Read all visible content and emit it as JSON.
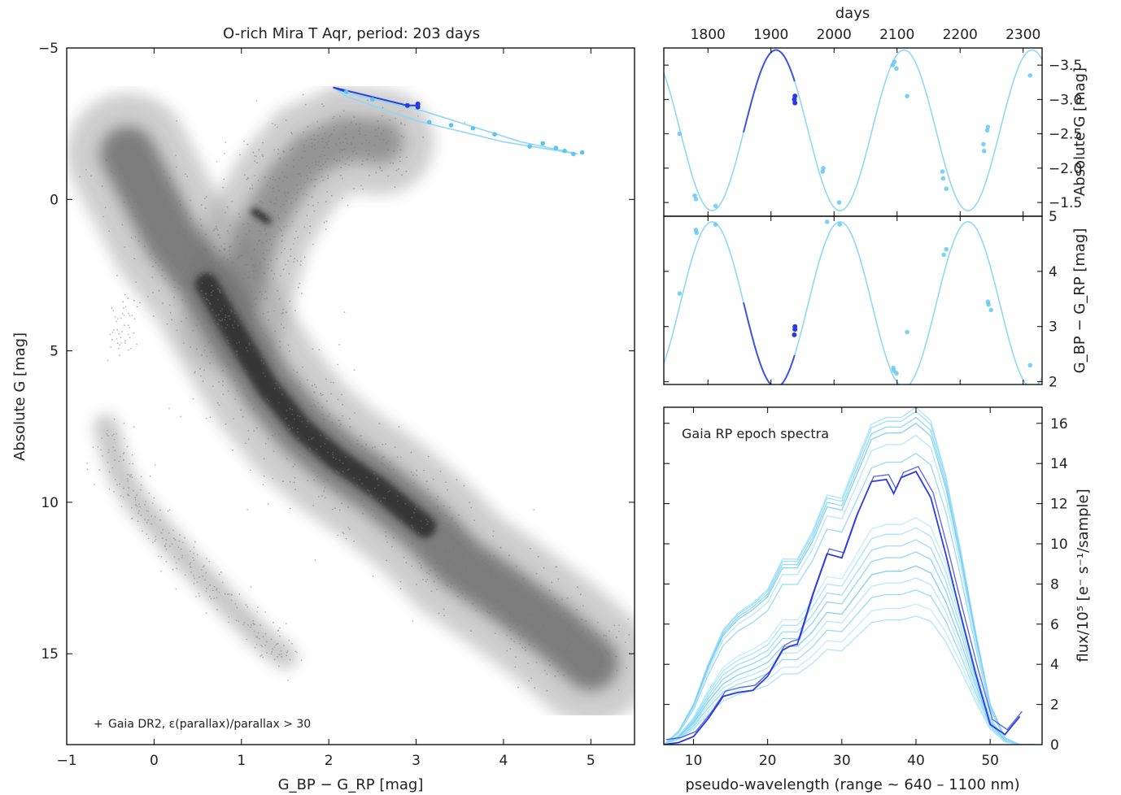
{
  "colors": {
    "cloud": "#2b2b2b",
    "light_blue": "#8fd8f6",
    "light_blue_point": "#5ec4ef",
    "dark_blue": "#2a3be0"
  },
  "chart_data": [
    {
      "id": "cmd",
      "type": "scatter",
      "title": "O-rich Mira T Aqr, period: 203 days",
      "xlabel": "G_BP − G_RP [mag]",
      "ylabel": "Absolute  G [mag]",
      "xlim": [
        -1,
        5.5
      ],
      "ylim": [
        18,
        -5
      ],
      "y_inverted": true,
      "xticks": [
        -1,
        0,
        1,
        2,
        3,
        4,
        5
      ],
      "yticks": [
        -5,
        0,
        5,
        10,
        15
      ],
      "legend": {
        "label": "Gaia DR2, ε(parallax)/parallax > 30",
        "position": "lower-left"
      },
      "population": {
        "name": "Gaia DR2",
        "main_sequence": [
          [
            -0.3,
            -1.5
          ],
          [
            0.2,
            1.3
          ],
          [
            0.6,
            2.8
          ],
          [
            0.9,
            4.3
          ],
          [
            1.3,
            6.2
          ],
          [
            1.7,
            7.6
          ],
          [
            2.1,
            8.6
          ],
          [
            2.6,
            9.6
          ],
          [
            3.1,
            10.8
          ],
          [
            3.5,
            12.0
          ],
          [
            4.0,
            13.0
          ],
          [
            4.6,
            14.3
          ],
          [
            5.0,
            15.3
          ]
        ],
        "red_giant_branch": [
          [
            0.9,
            4.0
          ],
          [
            1.05,
            2.5
          ],
          [
            1.2,
            1.0
          ],
          [
            1.5,
            -0.5
          ],
          [
            1.8,
            -1.5
          ],
          [
            2.2,
            -2.0
          ],
          [
            2.6,
            -1.9
          ]
        ],
        "red_clump": [
          [
            1.15,
            0.4
          ],
          [
            1.3,
            0.7
          ]
        ],
        "white_dwarfs": [
          [
            -0.55,
            7.5
          ],
          [
            -0.4,
            9.0
          ],
          [
            -0.2,
            10.0
          ],
          [
            0.1,
            11.0
          ],
          [
            0.4,
            12.0
          ],
          [
            0.8,
            13.2
          ],
          [
            1.2,
            14.4
          ],
          [
            1.5,
            15.1
          ]
        ],
        "hot_subdwarfs": [
          [
            -0.45,
            4.5
          ],
          [
            -0.3,
            4.2
          ]
        ]
      },
      "series": [
        {
          "name": "Gaia",
          "role": "epoch-loop",
          "loop": [
            [
              2.05,
              -3.7
            ],
            [
              2.2,
              -3.4
            ],
            [
              3.0,
              -2.6
            ],
            [
              4.0,
              -1.9
            ],
            [
              4.85,
              -1.5
            ],
            [
              4.2,
              -1.9
            ],
            [
              3.1,
              -2.9
            ],
            [
              2.15,
              -3.55
            ]
          ]
        },
        {
          "name": "Gaia",
          "role": "epoch-points",
          "points": [
            [
              2.2,
              -3.55
            ],
            [
              2.5,
              -3.3
            ],
            [
              3.15,
              -2.55
            ],
            [
              3.4,
              -2.45
            ],
            [
              3.65,
              -2.35
            ],
            [
              3.9,
              -2.15
            ],
            [
              4.3,
              -1.75
            ],
            [
              4.45,
              -1.85
            ],
            [
              4.6,
              -1.7
            ],
            [
              4.7,
              -1.6
            ],
            [
              4.8,
              -1.5
            ],
            [
              4.9,
              -1.55
            ]
          ]
        },
        {
          "name": "Gaia",
          "role": "current-points",
          "points": [
            [
              2.9,
              -3.1
            ],
            [
              3.02,
              -3.15
            ],
            [
              3.02,
              -3.05
            ]
          ]
        }
      ]
    },
    {
      "id": "light-curve",
      "type": "line",
      "xlabel_top": "days",
      "ylabel_right": "Absolute  G [mag]",
      "xlim": [
        1730,
        2330
      ],
      "ylim": [
        -1.3,
        -3.75
      ],
      "y_inverted": true,
      "xticks": [
        1800,
        1900,
        2000,
        2100,
        2200,
        2300
      ],
      "yticks": [
        -3.5,
        -3.0,
        -2.5,
        -2.0,
        -1.5
      ],
      "model": {
        "period": 203,
        "mean": -2.55,
        "amplitude": 1.17,
        "max_epoch": 1908
      },
      "current_epoch": 1938,
      "epoch_points": [
        [
          1755,
          -2.5
        ],
        [
          1779,
          -1.6
        ],
        [
          1781,
          -1.55
        ],
        [
          1812,
          -1.45
        ],
        [
          1982,
          -1.95
        ],
        [
          1983,
          -2.0
        ],
        [
          2008,
          -1.5
        ],
        [
          2093,
          -3.5
        ],
        [
          2096,
          -3.55
        ],
        [
          2099,
          -3.45
        ],
        [
          2116,
          -3.05
        ],
        [
          2172,
          -1.95
        ],
        [
          2173,
          -1.85
        ],
        [
          2178,
          -1.7
        ],
        [
          2237,
          -2.35
        ],
        [
          2238,
          -2.25
        ],
        [
          2243,
          -2.55
        ],
        [
          2244,
          -2.6
        ],
        [
          2311,
          -3.35
        ]
      ],
      "current_points": [
        [
          1937,
          -3.0
        ],
        [
          1938,
          -3.05
        ],
        [
          1938,
          -2.95
        ]
      ]
    },
    {
      "id": "color-curve",
      "type": "line",
      "ylabel_right": "G_BP − G_RP [mag]",
      "xlim": [
        1730,
        2330
      ],
      "ylim": [
        1.95,
        5.0
      ],
      "xticks": [
        1800,
        1900,
        2000,
        2100,
        2200,
        2300
      ],
      "yticks": [
        2,
        3,
        4,
        5
      ],
      "model": {
        "period": 203,
        "mean": 3.4,
        "amplitude": 1.5,
        "min_epoch": 1908
      },
      "current_epoch": 1938,
      "epoch_points": [
        [
          1755,
          3.6
        ],
        [
          1781,
          4.75
        ],
        [
          1782,
          4.7
        ],
        [
          1812,
          4.85
        ],
        [
          1989,
          4.9
        ],
        [
          2009,
          4.85
        ],
        [
          2094,
          2.25
        ],
        [
          2095,
          2.2
        ],
        [
          2099,
          2.15
        ],
        [
          2116,
          2.9
        ],
        [
          2174,
          4.3
        ],
        [
          2178,
          4.4
        ],
        [
          2244,
          3.45
        ],
        [
          2245,
          3.4
        ],
        [
          2249,
          3.3
        ],
        [
          2311,
          2.3
        ]
      ],
      "current_points": [
        [
          1937,
          2.85
        ],
        [
          1938,
          2.95
        ],
        [
          1938,
          3.0
        ]
      ]
    },
    {
      "id": "rp-spectra",
      "type": "line",
      "annotation": "Gaia RP epoch spectra",
      "xlabel": "pseudo-wavelength (range ~ 640 – 1100 nm)",
      "ylabel_right": "flux/10⁵  [e⁻ s⁻¹/sample]",
      "xlim": [
        6,
        57
      ],
      "ylim": [
        0,
        16.8
      ],
      "xticks": [
        10,
        20,
        30,
        40,
        50
      ],
      "yticks": [
        0,
        2,
        4,
        6,
        8,
        10,
        12,
        14,
        16
      ],
      "x": [
        6,
        8,
        10,
        12,
        14,
        16,
        18,
        20,
        22,
        24,
        26,
        28,
        30,
        32,
        34,
        36,
        38,
        40,
        42,
        44,
        46,
        48,
        50,
        52,
        54,
        56
      ],
      "profile": [
        0.0,
        0.04,
        0.12,
        0.24,
        0.34,
        0.39,
        0.42,
        0.46,
        0.55,
        0.55,
        0.63,
        0.74,
        0.73,
        0.84,
        0.95,
        0.97,
        0.97,
        1.0,
        0.96,
        0.8,
        0.58,
        0.34,
        0.12,
        0.02,
        0.0,
        0.0
      ],
      "series": [
        {
          "name": "epoch",
          "peak": 16.8,
          "role": "light"
        },
        {
          "name": "epoch",
          "peak": 16.6,
          "role": "light"
        },
        {
          "name": "epoch",
          "peak": 16.3,
          "role": "light"
        },
        {
          "name": "epoch",
          "peak": 16.0,
          "role": "light"
        },
        {
          "name": "epoch",
          "peak": 15.4,
          "role": "light"
        },
        {
          "name": "epoch",
          "peak": 14.5,
          "role": "light"
        },
        {
          "name": "epoch",
          "peak": 11.3,
          "role": "light"
        },
        {
          "name": "epoch",
          "peak": 10.8,
          "role": "light"
        },
        {
          "name": "epoch",
          "peak": 10.2,
          "role": "light"
        },
        {
          "name": "epoch",
          "peak": 9.6,
          "role": "light"
        },
        {
          "name": "epoch",
          "peak": 8.9,
          "role": "light"
        },
        {
          "name": "epoch",
          "peak": 8.3,
          "role": "light"
        },
        {
          "name": "epoch",
          "peak": 7.7,
          "role": "light"
        },
        {
          "name": "epoch",
          "peak": 7.0,
          "role": "light"
        },
        {
          "name": "epoch",
          "peak": 6.4,
          "role": "light"
        },
        {
          "name": "current epoch",
          "role": "dark",
          "x": [
            6,
            8,
            10,
            12,
            14,
            16,
            18,
            20,
            22,
            23,
            24,
            26,
            28,
            30,
            32,
            34,
            36,
            37,
            38,
            40,
            42,
            44,
            46,
            48,
            50,
            52,
            54
          ],
          "y": [
            0.0,
            0.1,
            0.4,
            1.3,
            2.4,
            2.6,
            2.7,
            3.4,
            4.7,
            4.9,
            5.0,
            7.4,
            9.5,
            9.3,
            11.4,
            13.1,
            13.2,
            12.5,
            13.3,
            13.6,
            12.3,
            9.5,
            6.5,
            3.6,
            1.0,
            0.5,
            1.4
          ]
        }
      ]
    }
  ]
}
